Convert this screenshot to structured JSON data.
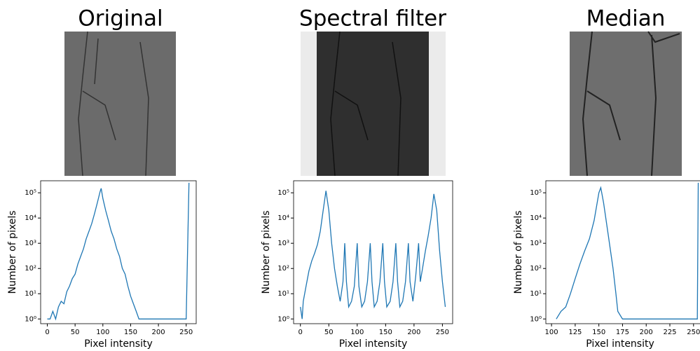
{
  "chart_data": [
    {
      "type": "line",
      "title": "Original",
      "xlabel": "Pixel intensity",
      "ylabel": "Number of pixels",
      "log_y": true,
      "color": "#1f77b4",
      "x": [
        0,
        5,
        10,
        15,
        20,
        25,
        30,
        35,
        40,
        45,
        50,
        55,
        60,
        65,
        70,
        75,
        80,
        85,
        90,
        95,
        97,
        100,
        105,
        110,
        115,
        120,
        125,
        130,
        135,
        140,
        145,
        150,
        155,
        160,
        165,
        170,
        250,
        255
      ],
      "values": [
        1,
        1,
        2,
        1,
        3,
        5,
        4,
        12,
        20,
        40,
        60,
        150,
        300,
        600,
        1500,
        3000,
        6000,
        15000,
        40000,
        110000,
        150000,
        60000,
        20000,
        8000,
        3000,
        1500,
        600,
        300,
        100,
        60,
        20,
        8,
        4,
        2,
        1,
        1,
        1,
        250000
      ],
      "xlim": [
        -12,
        268
      ],
      "xticks": [
        0,
        50,
        100,
        150,
        200,
        250
      ],
      "ylim": [
        0.65,
        300000
      ],
      "yticks": [
        {
          "value": 1,
          "label": "10⁰"
        },
        {
          "value": 10,
          "label": "10¹"
        },
        {
          "value": 100,
          "label": "10²"
        },
        {
          "value": 1000,
          "label": "10³"
        },
        {
          "value": 10000,
          "label": "10⁴"
        },
        {
          "value": 100000,
          "label": "10⁵"
        }
      ]
    },
    {
      "type": "line",
      "title": "Spectral filter",
      "xlabel": "Pixel intensity",
      "ylabel": "Number of pixels",
      "log_y": true,
      "color": "#1f77b4",
      "x": [
        0,
        3,
        5,
        10,
        15,
        20,
        25,
        30,
        35,
        40,
        45,
        50,
        55,
        60,
        65,
        70,
        75,
        78,
        81,
        85,
        90,
        95,
        100,
        103,
        108,
        113,
        118,
        123,
        126,
        130,
        135,
        140,
        145,
        148,
        152,
        158,
        163,
        168,
        171,
        175,
        180,
        185,
        190,
        193,
        198,
        203,
        208,
        211,
        215,
        220,
        225,
        230,
        235,
        240,
        245,
        250,
        255
      ],
      "values": [
        3,
        1,
        5,
        20,
        80,
        200,
        400,
        900,
        3000,
        20000,
        120000,
        20000,
        1000,
        100,
        20,
        5,
        30,
        1000,
        30,
        3,
        5,
        20,
        1000,
        20,
        3,
        5,
        30,
        1000,
        30,
        3,
        5,
        30,
        1000,
        30,
        3,
        5,
        30,
        1000,
        30,
        3,
        5,
        30,
        1000,
        30,
        5,
        50,
        1000,
        30,
        100,
        500,
        2000,
        10000,
        90000,
        20000,
        500,
        30,
        3
      ],
      "xlim": [
        -12,
        268
      ],
      "xticks": [
        0,
        50,
        100,
        150,
        200,
        250
      ],
      "ylim": [
        0.65,
        300000
      ],
      "yticks": [
        {
          "value": 1,
          "label": "10⁰"
        },
        {
          "value": 10,
          "label": "10¹"
        },
        {
          "value": 100,
          "label": "10²"
        },
        {
          "value": 1000,
          "label": "10³"
        },
        {
          "value": 10000,
          "label": "10⁴"
        },
        {
          "value": 100000,
          "label": "10⁵"
        }
      ]
    },
    {
      "type": "line",
      "title": "Median",
      "xlabel": "Pixel intensity",
      "ylabel": "Number of pixels",
      "log_y": true,
      "color": "#1f77b4",
      "x": [
        105,
        110,
        115,
        120,
        125,
        130,
        135,
        140,
        145,
        150,
        152,
        155,
        160,
        165,
        168,
        170,
        175,
        190,
        254,
        255
      ],
      "values": [
        1,
        2,
        3,
        10,
        40,
        150,
        500,
        1500,
        8000,
        100000,
        160000,
        40000,
        2000,
        100,
        10,
        2,
        1,
        1,
        1,
        250000
      ],
      "xlim": [
        94,
        262
      ],
      "xticks": [
        100,
        125,
        150,
        175,
        200,
        225,
        250
      ],
      "ylim": [
        0.65,
        300000
      ],
      "yticks": [
        {
          "value": 1,
          "label": "10⁰"
        },
        {
          "value": 10,
          "label": "10¹"
        },
        {
          "value": 100,
          "label": "10²"
        },
        {
          "value": 1000,
          "label": "10³"
        },
        {
          "value": 10000,
          "label": "10⁴"
        },
        {
          "value": 100000,
          "label": "10⁵"
        }
      ]
    }
  ]
}
